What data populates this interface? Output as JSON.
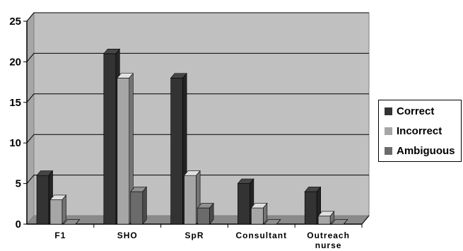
{
  "chart_data": {
    "type": "bar",
    "categories": [
      "F1",
      "SHO",
      "SpR",
      "Consultant",
      "Outreach nurse"
    ],
    "category_lines": [
      [
        "F1"
      ],
      [
        "SHO"
      ],
      [
        "SpR"
      ],
      [
        "Consultant"
      ],
      [
        "Outreach",
        "nurse"
      ]
    ],
    "series": [
      {
        "name": "Correct",
        "values": [
          6,
          21,
          18,
          5,
          4
        ],
        "color": "#333333"
      },
      {
        "name": "Incorrect",
        "values": [
          3,
          18,
          6,
          2,
          1
        ],
        "color": "#a6a6a6"
      },
      {
        "name": "Ambiguous",
        "values": [
          0,
          4,
          2,
          0,
          0
        ],
        "color": "#6b6b6b"
      }
    ],
    "y_ticks": [
      "0",
      "5",
      "10",
      "15",
      "20",
      "25"
    ],
    "ylim": [
      0,
      25
    ],
    "grid": true,
    "legend_position": "right",
    "plot_background": "#c0c0c0"
  }
}
